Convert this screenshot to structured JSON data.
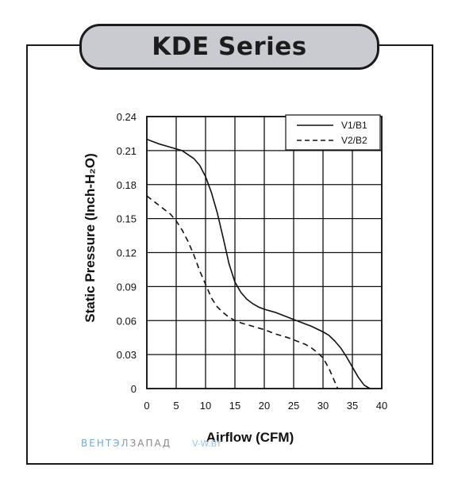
{
  "header": {
    "title": "KDE Series"
  },
  "watermark": {
    "part1": "ВЕНТЭЛ",
    "part2": "ЗАПАД",
    "part3": "V-W.BY"
  },
  "chart_data": {
    "type": "line",
    "title": "KDE Series",
    "xlabel": "Airflow (CFM)",
    "ylabel": "Static Pressure (Inch-H₂O)",
    "xlim": [
      0,
      40
    ],
    "ylim": [
      0,
      0.24
    ],
    "x_ticks": [
      "0",
      "5",
      "10",
      "15",
      "20",
      "25",
      "30",
      "35",
      "40"
    ],
    "y_ticks": [
      "0",
      "0.03",
      "0.06",
      "0.09",
      "0.12",
      "0.15",
      "0.18",
      "0.21",
      "0.24"
    ],
    "grid": true,
    "legend_position": "top-right",
    "series": [
      {
        "name": "V1/B1",
        "style": "solid",
        "color": "#111111",
        "x": [
          0,
          2,
          4,
          6,
          8,
          9,
          10,
          11,
          12,
          13,
          14,
          15,
          16,
          17,
          18,
          19,
          20,
          22,
          24,
          26,
          28,
          30,
          31,
          32,
          33,
          34,
          35,
          36,
          37,
          38
        ],
        "y": [
          0.22,
          0.216,
          0.213,
          0.21,
          0.203,
          0.197,
          0.187,
          0.173,
          0.155,
          0.133,
          0.11,
          0.094,
          0.085,
          0.079,
          0.075,
          0.072,
          0.07,
          0.067,
          0.063,
          0.059,
          0.055,
          0.05,
          0.047,
          0.042,
          0.036,
          0.028,
          0.019,
          0.01,
          0.003,
          0
        ]
      },
      {
        "name": "V2/B2",
        "style": "dashed",
        "color": "#111111",
        "x": [
          0,
          1,
          2,
          3,
          4,
          5,
          6,
          7,
          8,
          9,
          10,
          11,
          12,
          13,
          14,
          15,
          16,
          18,
          20,
          22,
          24,
          26,
          27,
          28,
          29,
          30,
          31,
          32,
          32.5
        ],
        "y": [
          0.17,
          0.166,
          0.162,
          0.158,
          0.154,
          0.148,
          0.14,
          0.13,
          0.118,
          0.104,
          0.092,
          0.08,
          0.072,
          0.067,
          0.063,
          0.06,
          0.058,
          0.055,
          0.052,
          0.048,
          0.045,
          0.041,
          0.039,
          0.036,
          0.032,
          0.027,
          0.018,
          0.006,
          0
        ]
      }
    ]
  }
}
